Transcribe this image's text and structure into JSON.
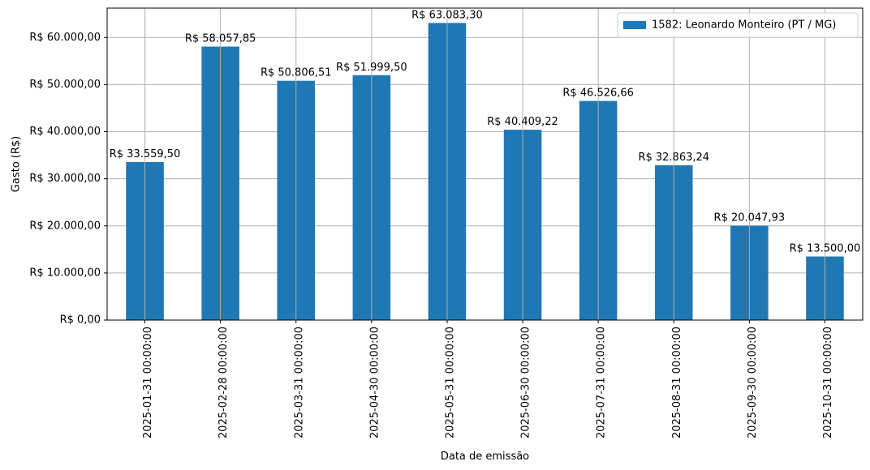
{
  "chart_data": {
    "type": "bar",
    "title": "",
    "xlabel": "Data de emissão",
    "ylabel": "Gasto (R$)",
    "categories": [
      "2025-01-31 00:00:00",
      "2025-02-28 00:00:00",
      "2025-03-31 00:00:00",
      "2025-04-30 00:00:00",
      "2025-05-31 00:00:00",
      "2025-06-30 00:00:00",
      "2025-07-31 00:00:00",
      "2025-08-31 00:00:00",
      "2025-09-30 00:00:00",
      "2025-10-31 00:00:00"
    ],
    "series": [
      {
        "name": "1582: Leonardo Monteiro (PT / MG)",
        "color": "#1f77b4",
        "values": [
          33559.5,
          58057.85,
          50806.51,
          51999.5,
          63083.3,
          40409.22,
          46526.66,
          32863.24,
          20047.93,
          13500.0
        ],
        "value_labels": [
          "R$ 33.559,50",
          "R$ 58.057,85",
          "R$ 50.806,51",
          "R$ 51.999,50",
          "R$ 63.083,30",
          "R$ 40.409,22",
          "R$ 46.526,66",
          "R$ 32.863,24",
          "R$ 20.047,93",
          "R$ 13.500,00"
        ]
      }
    ],
    "ylim": [
      0,
      66237.47
    ],
    "yticks": [
      0,
      10000,
      20000,
      30000,
      40000,
      50000,
      60000
    ],
    "ytick_labels": [
      "R$ 0,00",
      "R$ 10.000,00",
      "R$ 20.000,00",
      "R$ 30.000,00",
      "R$ 40.000,00",
      "R$ 50.000,00",
      "R$ 60.000,00"
    ],
    "grid": true,
    "legend_position": "top-right"
  }
}
